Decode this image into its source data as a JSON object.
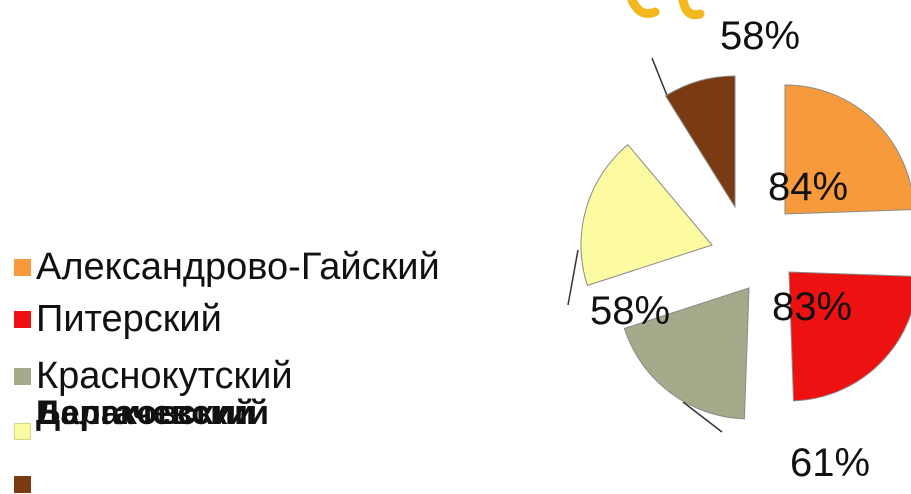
{
  "chart_data": {
    "type": "pie",
    "categories": [
      "Александрово-Гайский",
      "Питерский",
      "Краснокутский",
      "Дергачевский",
      "Балаковский"
    ],
    "values": [
      84,
      83,
      61,
      58,
      58
    ],
    "data_labels": [
      "84%",
      "83%",
      "61%",
      "58%",
      "58%"
    ],
    "colors": [
      "#f79a3c",
      "#ee1111",
      "#a6a98a",
      "#fdfba2",
      "#7b3b12"
    ],
    "exploded": true,
    "legend_position": "left"
  },
  "legend": {
    "items": [
      {
        "label": "Александрово-Гайский",
        "color": "#f79a3c"
      },
      {
        "label": "Питерский",
        "color": "#ee1111"
      },
      {
        "label": "Краснокутский",
        "color": "#a6a98a"
      },
      {
        "label": "Дергачевский",
        "color": "#fdfba2"
      },
      {
        "label": "Балаковский",
        "color": "#7b3b12"
      }
    ]
  }
}
